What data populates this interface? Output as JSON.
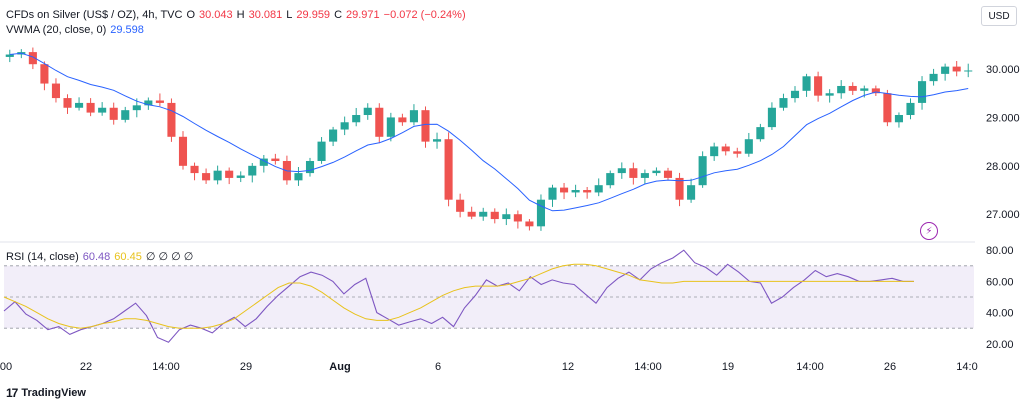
{
  "legend": {
    "symbol": "CFDs on Silver (US$ / OZ), 4h, TVC",
    "o_label": "O",
    "o_value": "30.043",
    "h_label": "H",
    "h_value": "30.081",
    "l_label": "L",
    "l_value": "29.959",
    "c_label": "C",
    "c_value": "29.971",
    "change": "−0.072 (−0.24%)",
    "vwma_label": "VWMA (20, close, 0)",
    "vwma_value": "29.598"
  },
  "rsi_legend": {
    "label": "RSI (14, close)",
    "value": "60.48",
    "ma_value": "60.45",
    "zeros": "∅ ∅ ∅ ∅"
  },
  "currency_button": "USD",
  "brand": {
    "logo": "17",
    "name": "TradingView"
  },
  "colors": {
    "up": "#26a69a",
    "down": "#ef5350",
    "vwma": "#2962ff",
    "rsi": "#7e57c2",
    "rsi_ma": "#e8c21c",
    "rsi_band": "#ede7f6"
  },
  "chart_data": [
    {
      "type": "candlestick",
      "series_name": "CFDs on Silver (US$ / OZ)",
      "interval": "4h",
      "x_tick_labels": [
        "00",
        "22",
        "14:00",
        "29",
        "Aug",
        "6",
        "12",
        "14:00",
        "19",
        "14:00",
        "26",
        "14:0"
      ],
      "y_ticks": [
        27.0,
        28.0,
        29.0,
        30.0
      ],
      "y_tick_labels": [
        "27.000",
        "28.000",
        "29.000",
        "30.000"
      ],
      "ylim": [
        26.55,
        30.6
      ],
      "overlay_series": [
        {
          "name": "VWMA (20, close, 0)"
        }
      ],
      "close_path": [
        30.3,
        30.35,
        30.1,
        29.7,
        29.4,
        29.2,
        29.3,
        29.1,
        29.2,
        28.95,
        29.15,
        29.25,
        29.35,
        29.3,
        28.6,
        28.0,
        27.85,
        27.7,
        27.9,
        27.75,
        27.8,
        28.0,
        28.15,
        28.1,
        27.7,
        27.85,
        28.1,
        28.5,
        28.75,
        28.9,
        29.05,
        29.2,
        28.6,
        29.0,
        28.9,
        29.15,
        28.5,
        28.55,
        27.3,
        27.05,
        26.95,
        27.05,
        26.9,
        27.0,
        26.85,
        26.75,
        27.3,
        27.55,
        27.45,
        27.5,
        27.45,
        27.6,
        27.85,
        27.95,
        27.75,
        27.85,
        27.9,
        27.75,
        27.3,
        27.6,
        28.2,
        28.4,
        28.3,
        28.25,
        28.55,
        28.8,
        29.2,
        29.4,
        29.55,
        29.85,
        29.45,
        29.5,
        29.65,
        29.55,
        29.6,
        29.5,
        28.9,
        29.05,
        29.3,
        29.75,
        29.9,
        30.05,
        29.95,
        29.97
      ]
    },
    {
      "type": "line",
      "title": "RSI (14, close)",
      "y_ticks": [
        20,
        40,
        60,
        80
      ],
      "y_tick_labels": [
        "20.00",
        "40.00",
        "60.00",
        "80.00"
      ],
      "band": [
        30,
        70
      ],
      "midline": 50,
      "ylim": [
        16,
        84
      ],
      "series": [
        {
          "name": "RSI",
          "values": [
            41,
            47,
            39,
            35,
            29,
            31,
            26,
            29,
            31,
            33,
            36,
            41,
            46,
            38,
            24,
            21,
            29,
            32,
            30,
            27,
            33,
            37,
            31,
            36,
            44,
            51,
            57,
            63,
            66,
            64,
            60,
            52,
            58,
            62,
            40,
            36,
            32,
            34,
            36,
            33,
            37,
            31,
            43,
            51,
            61,
            57,
            59,
            54,
            63,
            58,
            61,
            59,
            58,
            52,
            46,
            56,
            62,
            66,
            61,
            68,
            72,
            75,
            80,
            72,
            69,
            64,
            71,
            66,
            60,
            59,
            46,
            50,
            56,
            61,
            67,
            63,
            65,
            63,
            60,
            60,
            61,
            62,
            60,
            60
          ]
        },
        {
          "name": "RSI-based MA",
          "values": [
            50,
            47,
            44,
            40,
            36,
            33,
            31,
            30,
            31,
            33,
            34,
            36,
            36,
            35,
            33,
            31,
            30,
            30,
            30,
            31,
            33,
            36,
            41,
            46,
            51,
            56,
            59,
            59,
            57,
            53,
            48,
            43,
            39,
            36,
            35,
            35,
            37,
            40,
            43,
            47,
            51,
            54,
            56,
            57,
            57,
            57,
            58,
            60,
            62,
            65,
            68,
            70,
            71,
            71,
            70,
            68,
            66,
            64,
            61,
            60,
            59,
            59,
            60,
            60,
            60,
            60,
            60,
            60,
            60,
            60,
            60,
            60,
            60,
            60,
            60,
            60,
            60,
            60,
            60,
            60,
            60,
            60,
            60,
            60
          ]
        }
      ]
    }
  ]
}
